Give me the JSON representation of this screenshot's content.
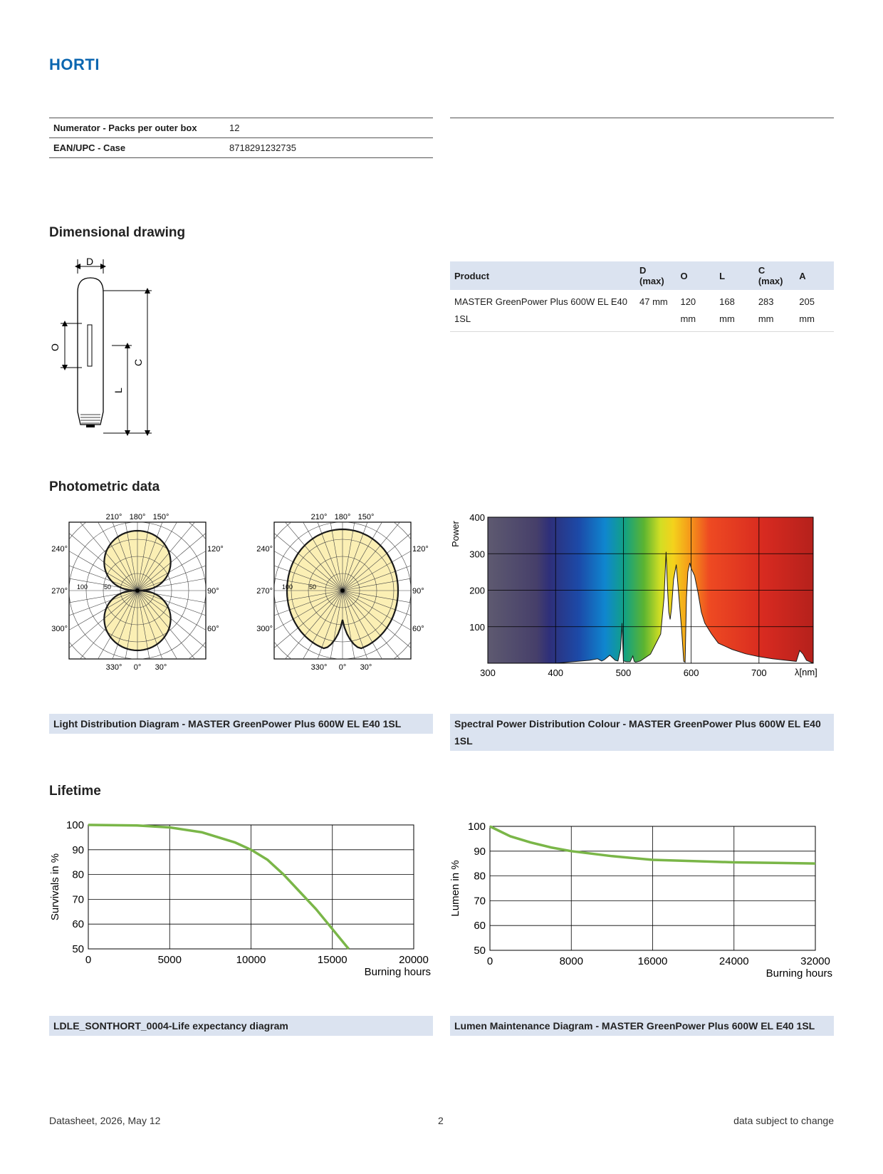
{
  "brand": "HORTI",
  "packaging": [
    {
      "label": "Numerator - Packs per outer box",
      "value": "12"
    },
    {
      "label": "EAN/UPC - Case",
      "value": "8718291232735"
    }
  ],
  "sections": {
    "dimensional": "Dimensional drawing",
    "photometric": "Photometric data",
    "lifetime": "Lifetime"
  },
  "drawing_labels": {
    "d": "D",
    "o": "O",
    "l": "L",
    "c": "C"
  },
  "dimensions": {
    "headers": [
      "Product",
      "D (max)",
      "O",
      "L",
      "C (max)",
      "A"
    ],
    "row": [
      "MASTER GreenPower Plus 600W EL E40 1SL",
      "47 mm",
      "120 mm",
      "168 mm",
      "283 mm",
      "205 mm"
    ]
  },
  "polar": {
    "top_labels": [
      "210°",
      "180°",
      "150°"
    ],
    "bottom_labels": [
      "330°",
      "0°",
      "30°"
    ],
    "left_labels": [
      "240°",
      "270°",
      "300°"
    ],
    "right_labels": [
      "120°",
      "90°",
      "60°"
    ],
    "radial_labels": [
      "100",
      "50"
    ]
  },
  "captions": {
    "light_distribution": "Light Distribution Diagram - MASTER GreenPower Plus 600W EL E40 1SL",
    "spectral": "Spectral Power Distribution Colour - MASTER GreenPower Plus 600W EL E40 1SL",
    "life": "LDLE_SONTHORT_0004-Life expectancy diagram",
    "lumen": "Lumen Maintenance Diagram - MASTER GreenPower Plus 600W EL E40 1SL"
  },
  "chart_data": [
    {
      "type": "area",
      "ylabel": "Power",
      "xlabel": "λ[nm]",
      "x_ticks": [
        "300",
        "400",
        "500",
        "600",
        "700"
      ],
      "y_ticks": [
        "100",
        "200",
        "300",
        "400"
      ],
      "xlim": [
        300,
        780
      ],
      "ylim": [
        0,
        400
      ],
      "grid": true,
      "x": [
        400,
        450,
        462,
        468,
        472,
        480,
        488,
        492,
        496,
        498,
        500,
        505,
        510,
        514,
        516,
        518,
        525,
        540,
        555,
        560,
        563,
        565,
        567,
        569,
        571,
        574,
        578,
        582,
        586,
        589,
        591,
        593,
        595,
        598,
        600,
        605,
        610,
        615,
        620,
        630,
        640,
        660,
        680,
        700,
        720,
        740,
        755,
        760,
        765,
        770,
        780
      ],
      "y": [
        0,
        8,
        12,
        6,
        10,
        22,
        8,
        6,
        40,
        110,
        6,
        4,
        4,
        20,
        5,
        3,
        6,
        25,
        80,
        180,
        305,
        210,
        140,
        120,
        150,
        230,
        270,
        180,
        90,
        5,
        3,
        180,
        250,
        275,
        260,
        240,
        195,
        140,
        110,
        80,
        55,
        38,
        26,
        18,
        12,
        8,
        5,
        35,
        25,
        8,
        0
      ]
    },
    {
      "type": "line",
      "ylabel": "Survivals in %",
      "xlabel": "Burning hours",
      "xlim": [
        0,
        20000
      ],
      "ylim": [
        50,
        100
      ],
      "x_ticks": [
        "0",
        "5000",
        "10000",
        "15000",
        "20000"
      ],
      "y_ticks": [
        "50",
        "60",
        "70",
        "80",
        "90",
        "100"
      ],
      "grid": true,
      "color": "#7ab648",
      "x": [
        0,
        3000,
        5000,
        7000,
        9000,
        10000,
        11000,
        12000,
        13000,
        14000,
        15000,
        16000
      ],
      "y": [
        100,
        99.8,
        99,
        97,
        93,
        90,
        86,
        80,
        73,
        66,
        58,
        50
      ]
    },
    {
      "type": "line",
      "ylabel": "Lumen in %",
      "xlabel": "Burning hours",
      "xlim": [
        0,
        32000
      ],
      "ylim": [
        50,
        100
      ],
      "x_ticks": [
        "0",
        "8000",
        "16000",
        "24000",
        "32000"
      ],
      "y_ticks": [
        "50",
        "60",
        "70",
        "80",
        "90",
        "100"
      ],
      "grid": true,
      "color": "#7ab648",
      "x": [
        0,
        1000,
        2000,
        4000,
        6000,
        8000,
        10000,
        12000,
        16000,
        20000,
        24000,
        28000,
        32000
      ],
      "y": [
        100,
        98,
        96,
        93.5,
        91.5,
        90,
        89,
        88,
        86.5,
        86,
        85.5,
        85.3,
        85
      ]
    }
  ],
  "footer": {
    "left": "Datasheet, 2026, May 12",
    "center": "2",
    "right": "data subject to change"
  }
}
